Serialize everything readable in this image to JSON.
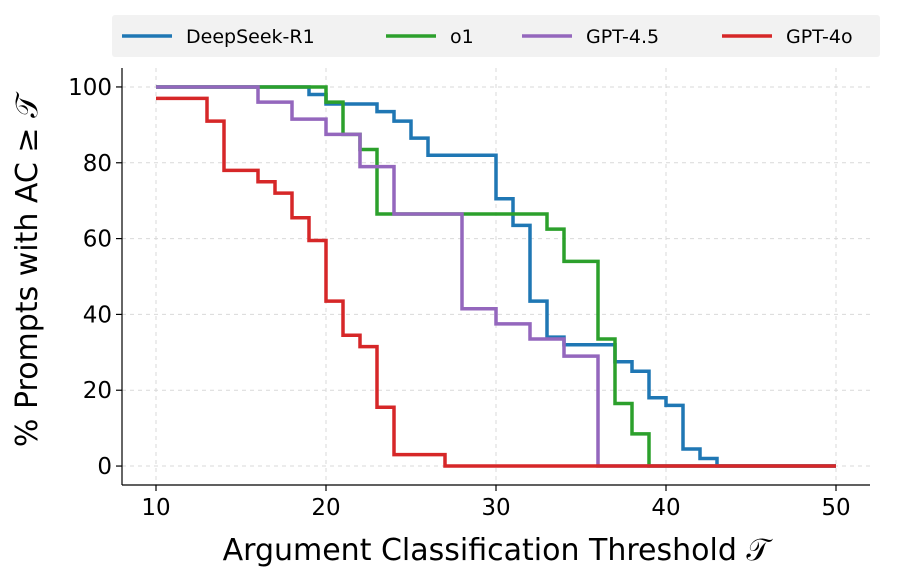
{
  "chart_data": {
    "type": "line",
    "step": true,
    "xlabel": "Argument Classification Threshold 𝒯",
    "ylabel": "% Prompts with AC ≥ 𝒯",
    "xlim": [
      8,
      52
    ],
    "ylim": [
      -5,
      105
    ],
    "xticks": [
      10,
      20,
      30,
      40,
      50
    ],
    "yticks": [
      0,
      20,
      40,
      60,
      80,
      100
    ],
    "grid": true,
    "legend_position": "top",
    "series": [
      {
        "name": "DeepSeek-R1",
        "color": "#1f77b4",
        "x": [
          10,
          19,
          20,
          23,
          24,
          25,
          26,
          30,
          31,
          32,
          33,
          34,
          37,
          38,
          39,
          40,
          41,
          42,
          43,
          50
        ],
        "y": [
          100,
          98,
          95.5,
          93.5,
          91,
          86.5,
          82,
          70.5,
          63.5,
          43.5,
          34,
          32,
          27.5,
          25,
          18,
          16,
          4.5,
          2,
          0,
          0
        ]
      },
      {
        "name": "o1",
        "color": "#2ca02c",
        "x": [
          10,
          20,
          21,
          22,
          23,
          33,
          34,
          36,
          37,
          38,
          39,
          50
        ],
        "y": [
          100,
          96,
          87.5,
          83.5,
          66.5,
          62.5,
          54,
          33.5,
          16.5,
          8.5,
          0,
          0
        ]
      },
      {
        "name": "GPT-4.5",
        "color": "#9467bd",
        "x": [
          10,
          16,
          18,
          20,
          22,
          24,
          28,
          30,
          32,
          34,
          36,
          50
        ],
        "y": [
          100,
          96,
          91.5,
          87.5,
          79,
          66.5,
          41.5,
          37.5,
          33.5,
          29,
          0,
          0
        ]
      },
      {
        "name": "GPT-4o",
        "color": "#d62728",
        "x": [
          10,
          13,
          14,
          16,
          17,
          18,
          19,
          20,
          21,
          22,
          23,
          24,
          27,
          50
        ],
        "y": [
          97,
          91,
          78,
          75,
          72,
          65.5,
          59.5,
          43.5,
          34.5,
          31.5,
          15.5,
          3,
          0,
          0
        ]
      }
    ]
  }
}
